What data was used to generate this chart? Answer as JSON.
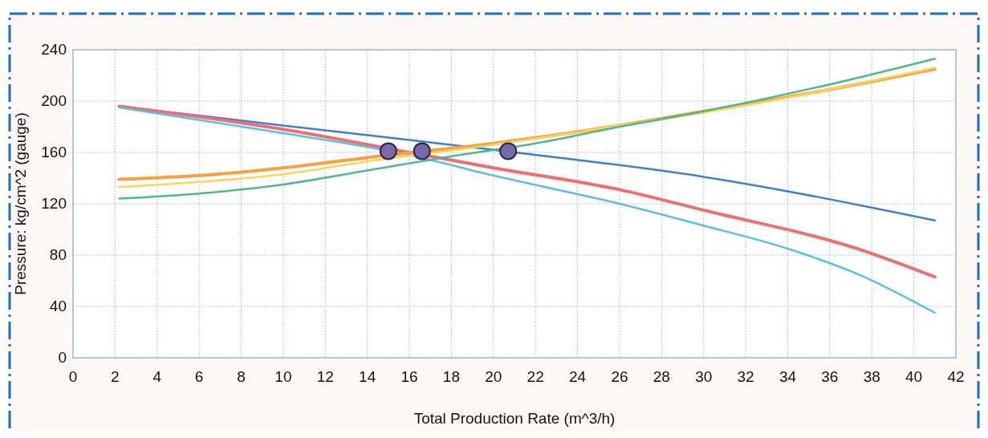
{
  "chart_data": {
    "type": "line",
    "xlabel": "Total Production Rate (m^3/h)",
    "ylabel": "Pressure: kg/cm^2 (gauge)",
    "xlim": [
      0,
      42
    ],
    "xticks": [
      0,
      2,
      4,
      6,
      8,
      10,
      12,
      14,
      16,
      18,
      20,
      22,
      24,
      26,
      28,
      30,
      32,
      34,
      36,
      38,
      40,
      42
    ],
    "ylim": [
      0,
      240
    ],
    "yticks": [
      0,
      40,
      80,
      120,
      160,
      200,
      240
    ],
    "grid": true,
    "marker": "none",
    "line_style": "solid",
    "series": [
      {
        "color": "#3f7fcf",
        "x": [
          2.2,
          10,
          20,
          30,
          41
        ],
        "values": [
          196,
          181,
          162,
          141,
          107
        ]
      },
      {
        "color": "#ee6f6f",
        "x": [
          2.2,
          10,
          16,
          20,
          26,
          30,
          37.5,
          41
        ],
        "values": [
          196,
          178,
          160,
          148,
          131,
          115,
          84,
          63
        ]
      },
      {
        "color": "#5bbde8",
        "x": [
          2.2,
          10,
          16,
          20,
          26,
          30,
          34,
          37.5,
          41
        ],
        "values": [
          195,
          175,
          158,
          142,
          120,
          103,
          85,
          64,
          35
        ]
      },
      {
        "color": "#f9a040",
        "x": [
          2.2,
          6,
          10,
          14,
          20,
          26,
          30,
          36,
          41
        ],
        "values": [
          139,
          142,
          148,
          156,
          167,
          181,
          192,
          209,
          225
        ]
      },
      {
        "color": "#fcd45a",
        "x": [
          2.2,
          6,
          10,
          14,
          20,
          26,
          30,
          36,
          41
        ],
        "values": [
          133,
          137,
          143,
          153,
          166,
          181,
          191,
          209,
          226
        ]
      },
      {
        "color": "#4fb88a",
        "x": [
          2.2,
          6,
          10,
          14,
          18,
          22,
          26,
          30,
          36,
          41
        ],
        "values": [
          124,
          128,
          135,
          146,
          157,
          167,
          180,
          192,
          213,
          233
        ]
      },
      {
        "type": "scatter",
        "marker": "circle",
        "color": "#7a68ad",
        "x": [
          15,
          16.6,
          20.7
        ],
        "values": [
          161,
          161,
          161
        ]
      }
    ]
  }
}
